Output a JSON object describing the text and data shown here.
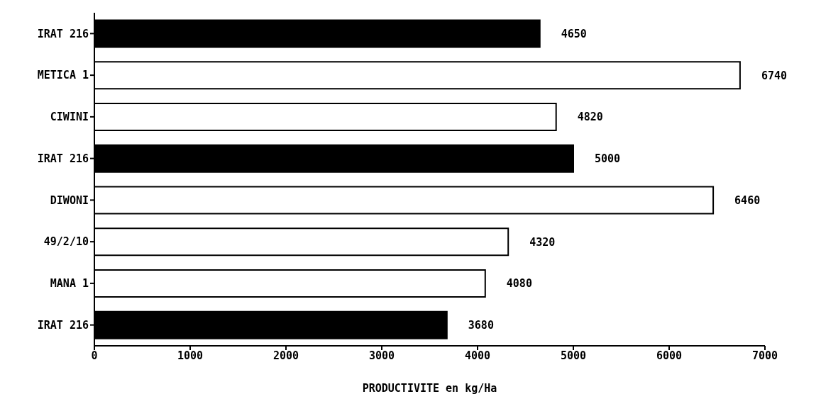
{
  "chart_data": {
    "type": "bar",
    "orientation": "horizontal",
    "xlabel": "PRODUCTIVITE  en kg/Ha",
    "categories": [
      "IRAT 216",
      "METICA 1",
      "CIWINI",
      "IRAT 216",
      "DIWONI",
      "49/2/10",
      "MANA 1",
      "IRAT 216"
    ],
    "values": [
      4650,
      6740,
      4820,
      5000,
      6460,
      4320,
      4080,
      3680
    ],
    "colors": [
      "#000000",
      "#ffffff",
      "#ffffff",
      "#000000",
      "#ffffff",
      "#ffffff",
      "#ffffff",
      "#000000"
    ],
    "xlim": [
      0,
      7000
    ],
    "xticks": [
      0,
      1000,
      2000,
      3000,
      4000,
      5000,
      6000,
      7000
    ],
    "data_labels": true,
    "grid": false,
    "legend": false
  }
}
